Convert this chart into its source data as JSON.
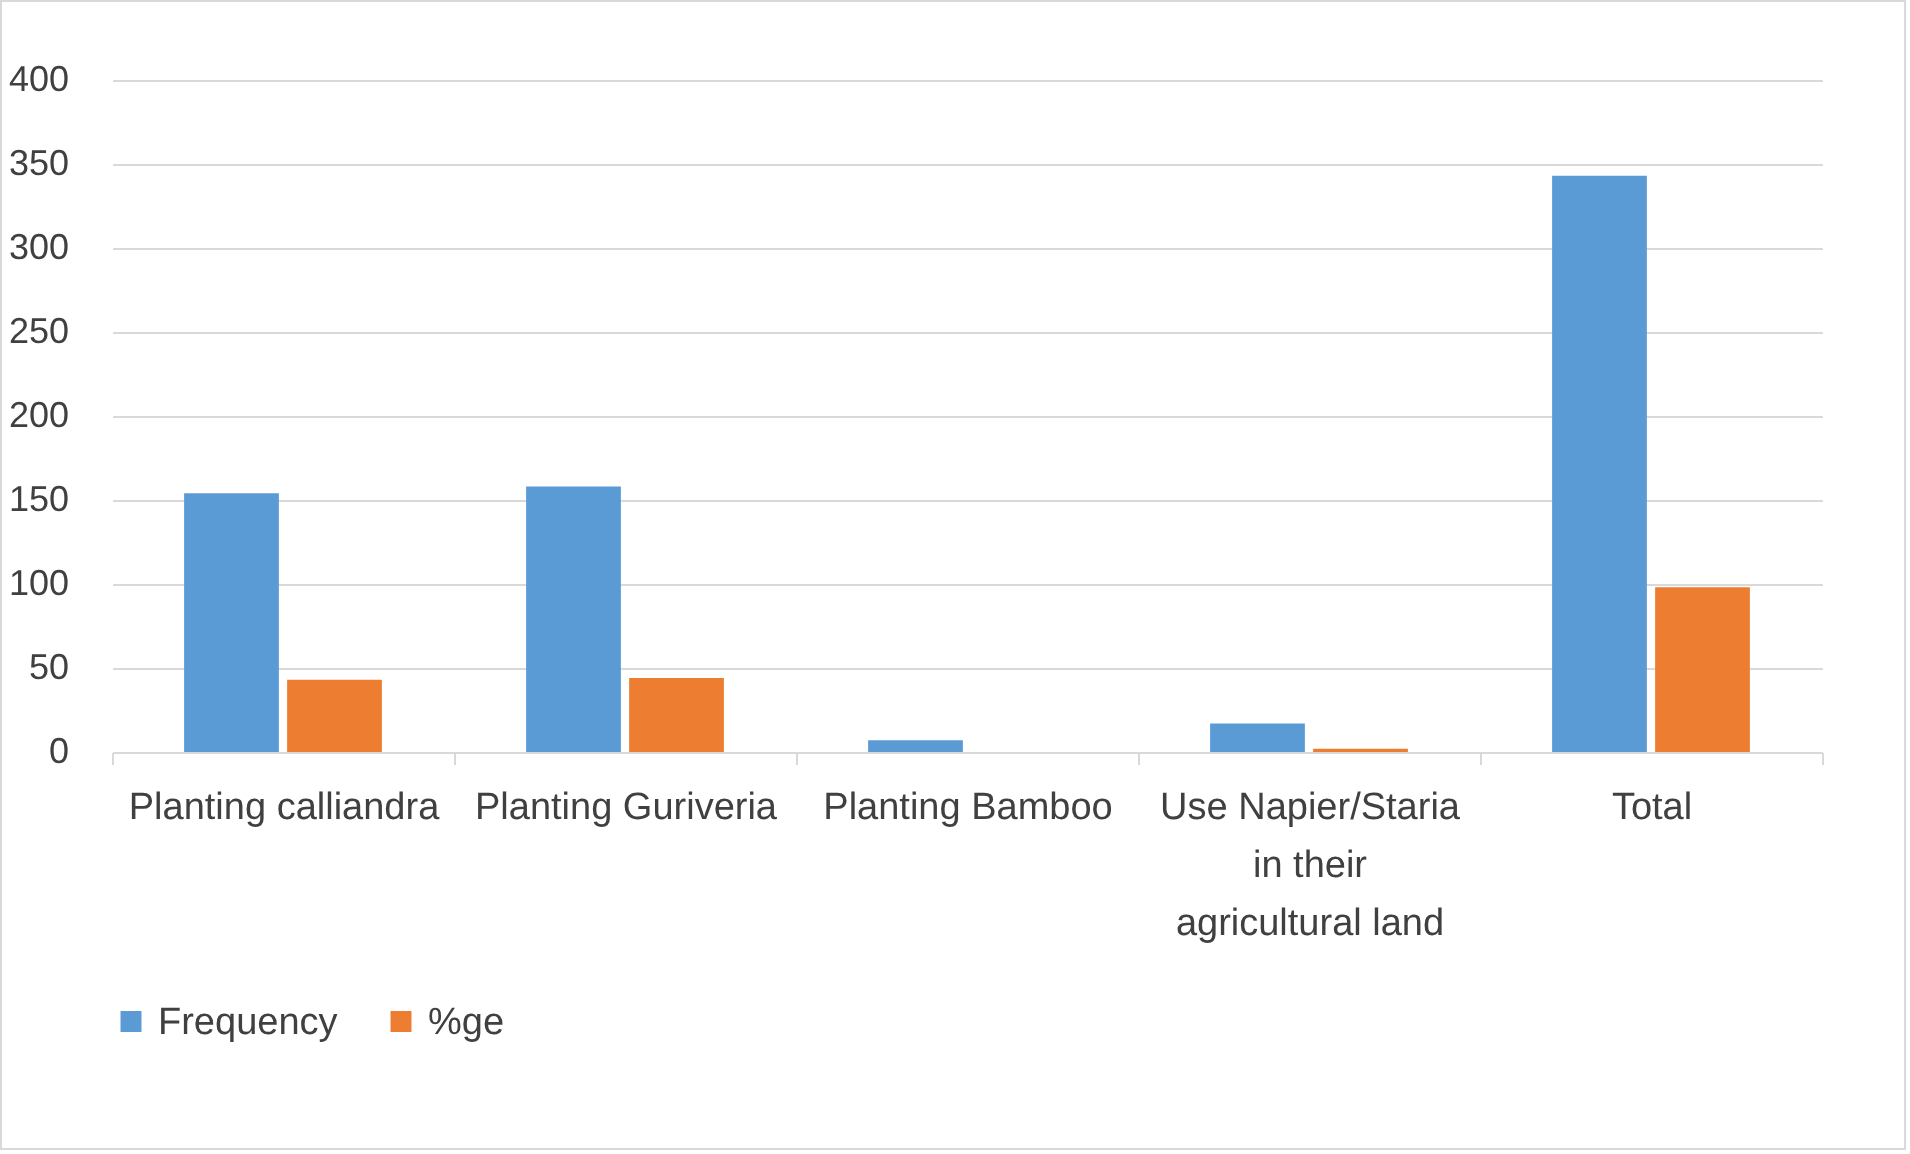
{
  "chart_data": {
    "type": "bar",
    "categories": [
      "Planting calliandra",
      "Planting Guriveria",
      "Planting Bamboo",
      "Use Napier/Staria in their agricultural land",
      "Total"
    ],
    "series": [
      {
        "name": "Frequency",
        "color": "#5b9bd5",
        "values": [
          154,
          158,
          7,
          17,
          343
        ]
      },
      {
        "name": "%ge",
        "color": "#ed7d31",
        "values": [
          43,
          44,
          0,
          2,
          98
        ]
      }
    ],
    "ylim": [
      0,
      400
    ],
    "yticks": [
      0,
      50,
      100,
      150,
      200,
      250,
      300,
      350,
      400
    ],
    "grid": "y",
    "legend": "bottom"
  }
}
